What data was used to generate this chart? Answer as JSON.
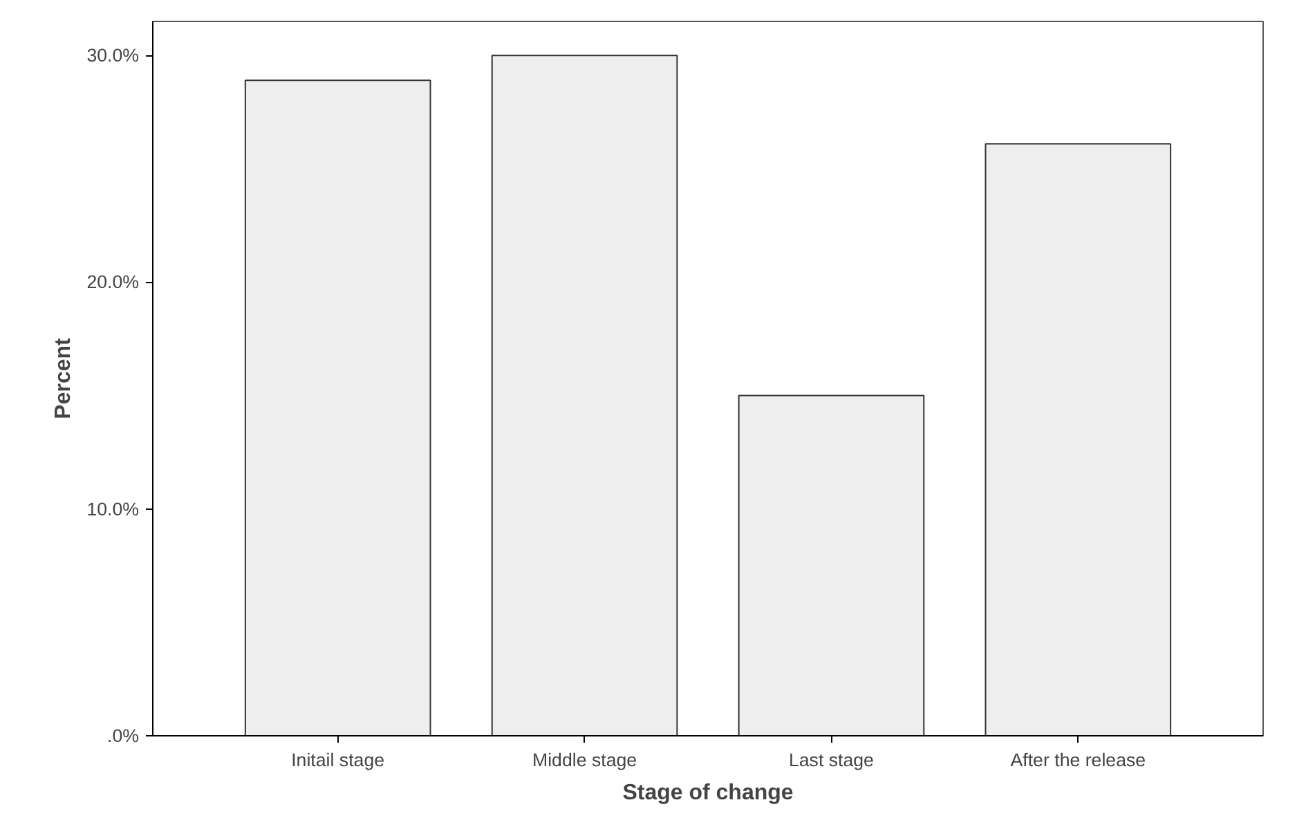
{
  "chart_data": {
    "type": "bar",
    "xlabel": "Stage of change",
    "ylabel": "Percent",
    "categories": [
      "Initail stage",
      "Middle stage",
      "Last stage",
      "After the release"
    ],
    "values": [
      28.9,
      30.0,
      15.0,
      26.1
    ],
    "color": "#eeeeee",
    "ylim": [
      0,
      31.5
    ],
    "yticks": [
      {
        "value": 0,
        "label": ".0%"
      },
      {
        "value": 10,
        "label": "10.0%"
      },
      {
        "value": 20,
        "label": "20.0%"
      },
      {
        "value": 30,
        "label": "30.0%"
      }
    ],
    "grid": false
  }
}
